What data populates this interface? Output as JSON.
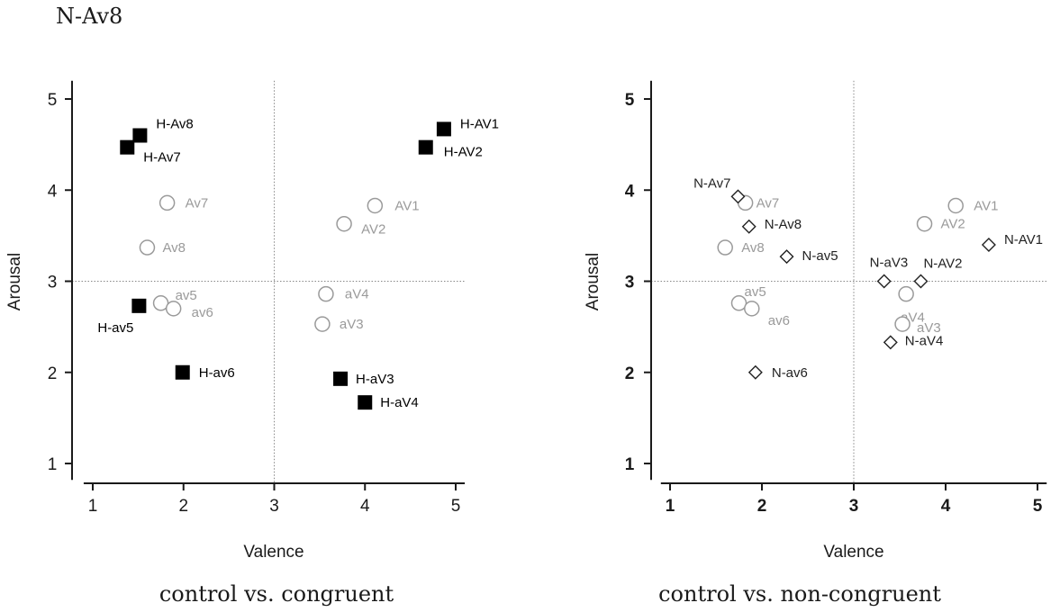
{
  "header": {
    "text": "N-Av8"
  },
  "colors": {
    "control": "#9a9a9a",
    "congruent": "#000000",
    "noncongruent": "#222222",
    "axis": "#1a1a1a",
    "reference": "#888888"
  },
  "chart_data": [
    {
      "type": "scatter",
      "caption": "control vs. congruent",
      "xlabel": "Valence",
      "ylabel": "Arousal",
      "xlim": [
        0.75,
        5.1
      ],
      "ylim": [
        0.75,
        5.2
      ],
      "xticks": [
        "1",
        "2",
        "3",
        "4",
        "5"
      ],
      "yticks": [
        "1",
        "2",
        "3",
        "4",
        "5"
      ],
      "reference_lines": {
        "x": 3,
        "y": 3
      },
      "series": [
        {
          "marker": "open-circle",
          "points": [
            {
              "label": "Av7",
              "x": 1.82,
              "y": 3.86
            },
            {
              "label": "Av8",
              "x": 1.6,
              "y": 3.37
            },
            {
              "label": "av5",
              "x": 1.75,
              "y": 2.76
            },
            {
              "label": "av6",
              "x": 1.89,
              "y": 2.7
            },
            {
              "label": "AV1",
              "x": 4.11,
              "y": 3.83
            },
            {
              "label": "AV2",
              "x": 3.77,
              "y": 3.63
            },
            {
              "label": "aV4",
              "x": 3.57,
              "y": 2.86
            },
            {
              "label": "aV3",
              "x": 3.53,
              "y": 2.53
            }
          ]
        },
        {
          "marker": "filled-square",
          "points": [
            {
              "label": "H-Av8",
              "x": 1.52,
              "y": 4.6
            },
            {
              "label": "H-Av7",
              "x": 1.38,
              "y": 4.47
            },
            {
              "label": "H-av5",
              "x": 1.51,
              "y": 2.73
            },
            {
              "label": "H-av6",
              "x": 1.99,
              "y": 2.0
            },
            {
              "label": "H-AV1",
              "x": 4.87,
              "y": 4.67
            },
            {
              "label": "H-AV2",
              "x": 4.67,
              "y": 4.47
            },
            {
              "label": "H-aV3",
              "x": 3.73,
              "y": 1.93
            },
            {
              "label": "H-aV4",
              "x": 4.0,
              "y": 1.67
            }
          ]
        }
      ]
    },
    {
      "type": "scatter",
      "caption": "control vs. non-congruent",
      "xlabel": "Valence",
      "ylabel": "Arousal",
      "xlim": [
        0.75,
        5.1
      ],
      "ylim": [
        0.75,
        5.2
      ],
      "xticks": [
        "1",
        "2",
        "3",
        "4",
        "5"
      ],
      "yticks": [
        "1",
        "2",
        "3",
        "4",
        "5"
      ],
      "reference_lines": {
        "x": 3,
        "y": 3
      },
      "series": [
        {
          "marker": "open-circle",
          "points": [
            {
              "label": "Av7",
              "x": 1.82,
              "y": 3.86
            },
            {
              "label": "Av8",
              "x": 1.6,
              "y": 3.37
            },
            {
              "label": "av5",
              "x": 1.75,
              "y": 2.76
            },
            {
              "label": "av6",
              "x": 1.89,
              "y": 2.7
            },
            {
              "label": "AV1",
              "x": 4.11,
              "y": 3.83
            },
            {
              "label": "AV2",
              "x": 3.77,
              "y": 3.63
            },
            {
              "label": "aV4",
              "x": 3.57,
              "y": 2.86
            },
            {
              "label": "aV3",
              "x": 3.53,
              "y": 2.53
            }
          ]
        },
        {
          "marker": "open-diamond",
          "points": [
            {
              "label": "N-Av7",
              "x": 1.74,
              "y": 3.93
            },
            {
              "label": "N-Av8",
              "x": 1.86,
              "y": 3.6
            },
            {
              "label": "N-av5",
              "x": 2.27,
              "y": 3.27
            },
            {
              "label": "N-av6",
              "x": 1.93,
              "y": 2.0
            },
            {
              "label": "N-AV1",
              "x": 4.47,
              "y": 3.4
            },
            {
              "label": "N-AV2",
              "x": 3.73,
              "y": 3.0
            },
            {
              "label": "N-aV3",
              "x": 3.33,
              "y": 3.0
            },
            {
              "label": "N-aV4",
              "x": 3.4,
              "y": 2.33
            }
          ]
        }
      ]
    }
  ]
}
